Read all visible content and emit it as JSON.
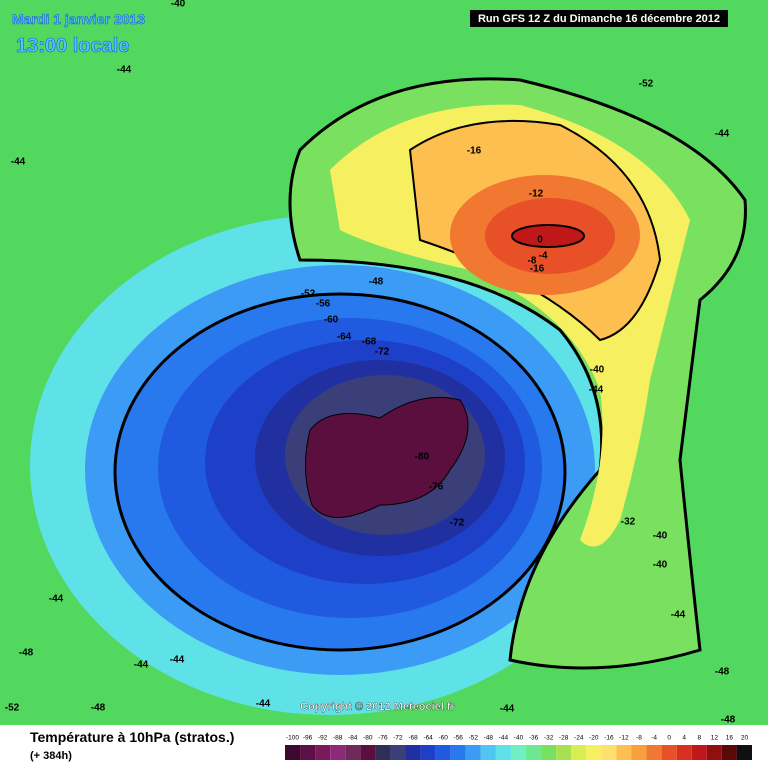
{
  "header": {
    "date": "Mardi 1 janvier 2013",
    "time": "13:00 locale",
    "run": "Run GFS 12 Z du Dimanche 16 décembre 2012"
  },
  "copyright": "Copyright © 2012 Meteociel.fr",
  "footer": {
    "title": "Température à 10hPa (stratos.)",
    "lead": "(+ 384h)"
  },
  "map_labels": [
    -40,
    -44,
    -44,
    -52,
    -44,
    -16,
    -12,
    0,
    -4,
    -8,
    -16,
    -48,
    -52,
    -56,
    -60,
    -64,
    -68,
    -72,
    -80,
    -76,
    -72,
    -40,
    -44,
    -32,
    -40,
    -40,
    -44,
    -44,
    -48,
    -44,
    -44,
    -52,
    -48,
    -44,
    -44,
    -48,
    -48
  ],
  "legend": {
    "ticks": [
      -100,
      -96,
      -92,
      -88,
      -84,
      -80,
      -76,
      -72,
      -68,
      -64,
      -60,
      -56,
      -52,
      -48,
      -44,
      -40,
      -36,
      -32,
      -28,
      -24,
      -20,
      -16,
      -12,
      -8,
      -4,
      0,
      4,
      8,
      12,
      16,
      20
    ],
    "colors": [
      "#3b0a2e",
      "#5c1046",
      "#781a5c",
      "#8a2a78",
      "#6e2a5a",
      "#5a0f3f",
      "#2f2f55",
      "#3a3f7a",
      "#2030a0",
      "#1e40c8",
      "#1f5ae0",
      "#2878ee",
      "#3b9bf5",
      "#4ec8f2",
      "#5ee2e8",
      "#6ef0c0",
      "#6ee890",
      "#7ae060",
      "#a8e050",
      "#d8ee50",
      "#f6f060",
      "#fde070",
      "#fdc050",
      "#f8a040",
      "#f07830",
      "#e85028",
      "#d83020",
      "#c01818",
      "#901010",
      "#5a0808",
      "#101010"
    ]
  }
}
